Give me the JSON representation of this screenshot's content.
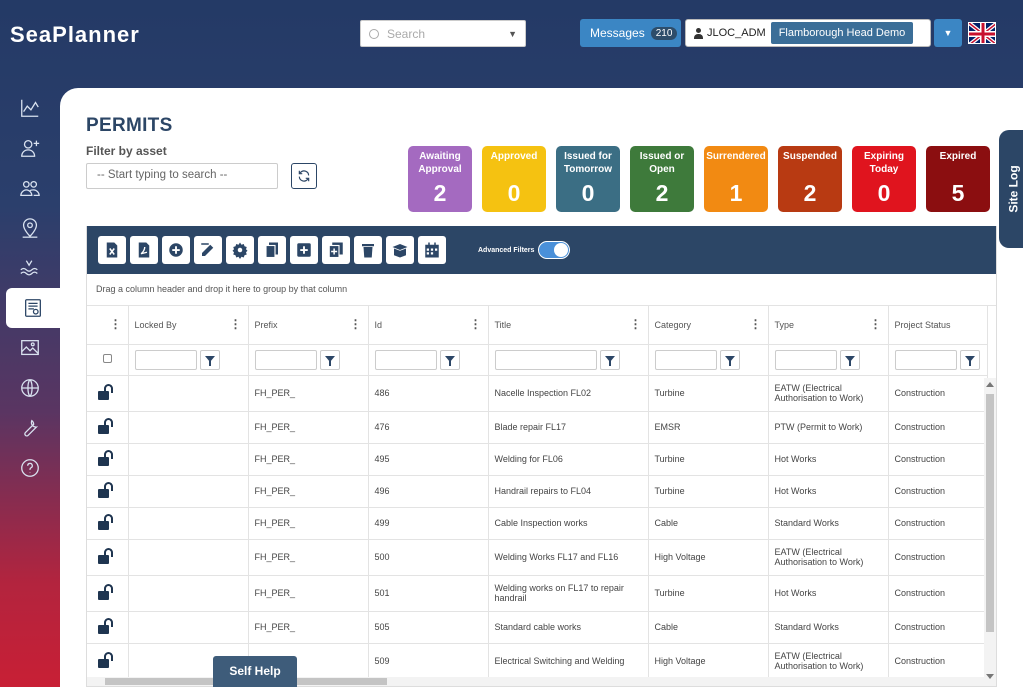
{
  "app": {
    "logo": "SeaPlanner",
    "search_placeholder": "Search",
    "messages_label": "Messages",
    "messages_count": "210",
    "username": "JLOC_ADM",
    "project": "Flamborough Head Demo",
    "self_help": "Self Help"
  },
  "sidebar": {
    "items": [
      "chart-icon",
      "add-user-icon",
      "users-icon",
      "location-pin-icon",
      "waves-icon",
      "permits-icon",
      "map-image-icon",
      "globe-icon",
      "wrench-icon",
      "help-icon"
    ],
    "active": "permits-icon"
  },
  "page": {
    "title": "PERMITS",
    "filter_label": "Filter by asset",
    "asset_placeholder": "-- Start typing to search --",
    "site_log": "Site Log"
  },
  "status_cards": [
    {
      "label": "Awaiting Approval",
      "count": "2",
      "color": "#a46ac0"
    },
    {
      "label": "Approved",
      "count": "0",
      "color": "#f5c211"
    },
    {
      "label": "Issued for Tomorrow",
      "count": "0",
      "color": "#3b6e84"
    },
    {
      "label": "Issued or Open",
      "count": "2",
      "color": "#3e7a3b"
    },
    {
      "label": "Surrendered",
      "count": "1",
      "color": "#f28a12"
    },
    {
      "label": "Suspended",
      "count": "2",
      "color": "#b83a12"
    },
    {
      "label": "Expiring Today",
      "count": "0",
      "color": "#e0141e"
    },
    {
      "label": "Expired",
      "count": "5",
      "color": "#8b0e10"
    }
  ],
  "toolbar": {
    "advanced_filters": "Advanced Filters"
  },
  "grid": {
    "group_hint": "Drag a column header and drop it here to group by that column",
    "columns": [
      "Locked By",
      "Prefix",
      "Id",
      "Title",
      "Category",
      "Type",
      "Project Status"
    ],
    "rows": [
      {
        "prefix": "FH_PER_",
        "id": "486",
        "title": "Nacelle Inspection FL02",
        "category": "Turbine",
        "type": "EATW (Electrical Authorisation to Work)",
        "status": "Construction"
      },
      {
        "prefix": "FH_PER_",
        "id": "476",
        "title": "Blade repair FL17",
        "category": "EMSR",
        "type": "PTW (Permit to Work)",
        "status": "Construction"
      },
      {
        "prefix": "FH_PER_",
        "id": "495",
        "title": "Welding for FL06",
        "category": "Turbine",
        "type": "Hot Works",
        "status": "Construction"
      },
      {
        "prefix": "FH_PER_",
        "id": "496",
        "title": "Handrail repairs to FL04",
        "category": "Turbine",
        "type": "Hot Works",
        "status": "Construction"
      },
      {
        "prefix": "FH_PER_",
        "id": "499",
        "title": "Cable Inspection works",
        "category": "Cable",
        "type": "Standard Works",
        "status": "Construction"
      },
      {
        "prefix": "FH_PER_",
        "id": "500",
        "title": "Welding Works FL17 and FL16",
        "category": "High Voltage",
        "type": "EATW (Electrical Authorisation to Work)",
        "status": "Construction"
      },
      {
        "prefix": "FH_PER_",
        "id": "501",
        "title": "Welding works on FL17 to repair handrail",
        "category": "Turbine",
        "type": "Hot Works",
        "status": "Construction"
      },
      {
        "prefix": "FH_PER_",
        "id": "505",
        "title": "Standard cable works",
        "category": "Cable",
        "type": "Standard Works",
        "status": "Construction"
      },
      {
        "prefix": "FH_PER_",
        "id": "509",
        "title": "Electrical Switching and Welding",
        "category": "High Voltage",
        "type": "EATW (Electrical Authorisation to Work)",
        "status": "Construction"
      }
    ]
  }
}
